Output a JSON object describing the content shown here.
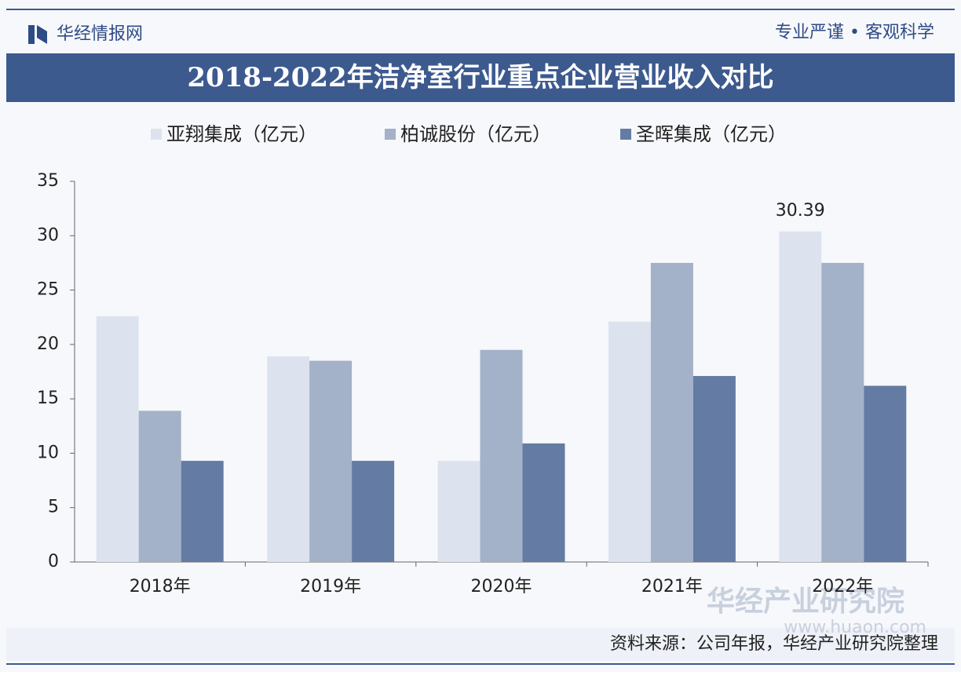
{
  "header": {
    "brand": "华经情报网",
    "slogan": "专业严谨 • 客观科学"
  },
  "chart_data": {
    "type": "bar",
    "title": "2018-2022年洁净室行业重点企业营业收入对比",
    "categories": [
      "2018年",
      "2019年",
      "2020年",
      "2021年",
      "2022年"
    ],
    "series": [
      {
        "name": "亚翔集成（亿元）",
        "color": "#dde3ee",
        "values": [
          22.6,
          18.9,
          9.3,
          22.1,
          30.39
        ],
        "value_labels": [
          null,
          null,
          null,
          null,
          "30.39"
        ]
      },
      {
        "name": "柏诚股份（亿元）",
        "color": "#a3b1c9",
        "values": [
          13.9,
          18.5,
          19.5,
          27.5,
          27.5
        ]
      },
      {
        "name": "圣晖集成（亿元）",
        "color": "#647ca3",
        "values": [
          9.3,
          9.3,
          10.9,
          17.1,
          16.2
        ]
      }
    ],
    "ylim": [
      0,
      35
    ],
    "yticks": [
      0,
      5,
      10,
      15,
      20,
      25,
      30,
      35
    ],
    "grid": false,
    "legend": "top"
  },
  "footer": {
    "source": "资料来源：公司年报，华经产业研究院整理",
    "watermark": "华经产业研究院",
    "watermark_url": "www.huaon.com"
  }
}
